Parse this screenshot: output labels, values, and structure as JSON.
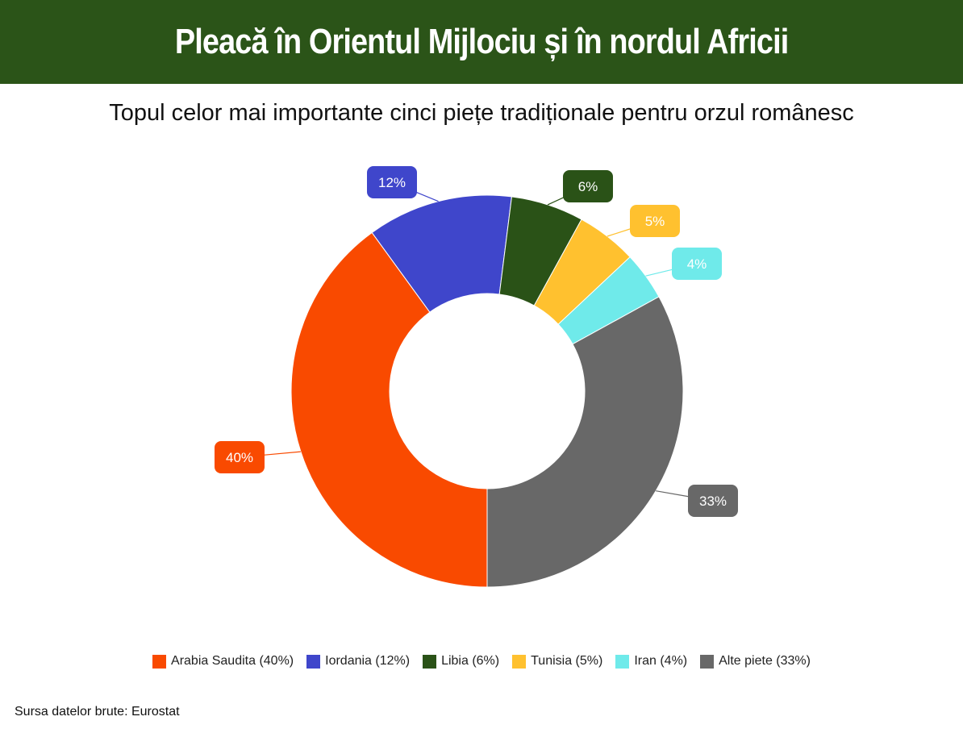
{
  "header": {
    "title": "Pleacă în Orientul Mijlociu și în nordul Africii"
  },
  "source_note": "Sursa datelor brute: Eurostat",
  "chart_data": {
    "type": "pie",
    "variant": "donut",
    "title": "Topul celor mai importante cinci piețe tradiționale pentru orzul românesc",
    "categories": [
      "Arabia Saudita",
      "Iordania",
      "Libia",
      "Tunisia",
      "Iran",
      "Alte piete"
    ],
    "values": [
      40,
      12,
      6,
      5,
      4,
      33
    ],
    "value_labels": [
      "40%",
      "12%",
      "6%",
      "5%",
      "4%",
      "33%"
    ],
    "legend_labels": [
      "Arabia Saudita (40%)",
      "Iordania (12%)",
      "Libia (6%)",
      "Tunisia (5%)",
      "Iran (4%)",
      "Alte piete (33%)"
    ],
    "colors": [
      "#f94a00",
      "#3f46cb",
      "#2a5217",
      "#ffc12f",
      "#6feaea",
      "#686868"
    ],
    "legend_position": "bottom"
  }
}
